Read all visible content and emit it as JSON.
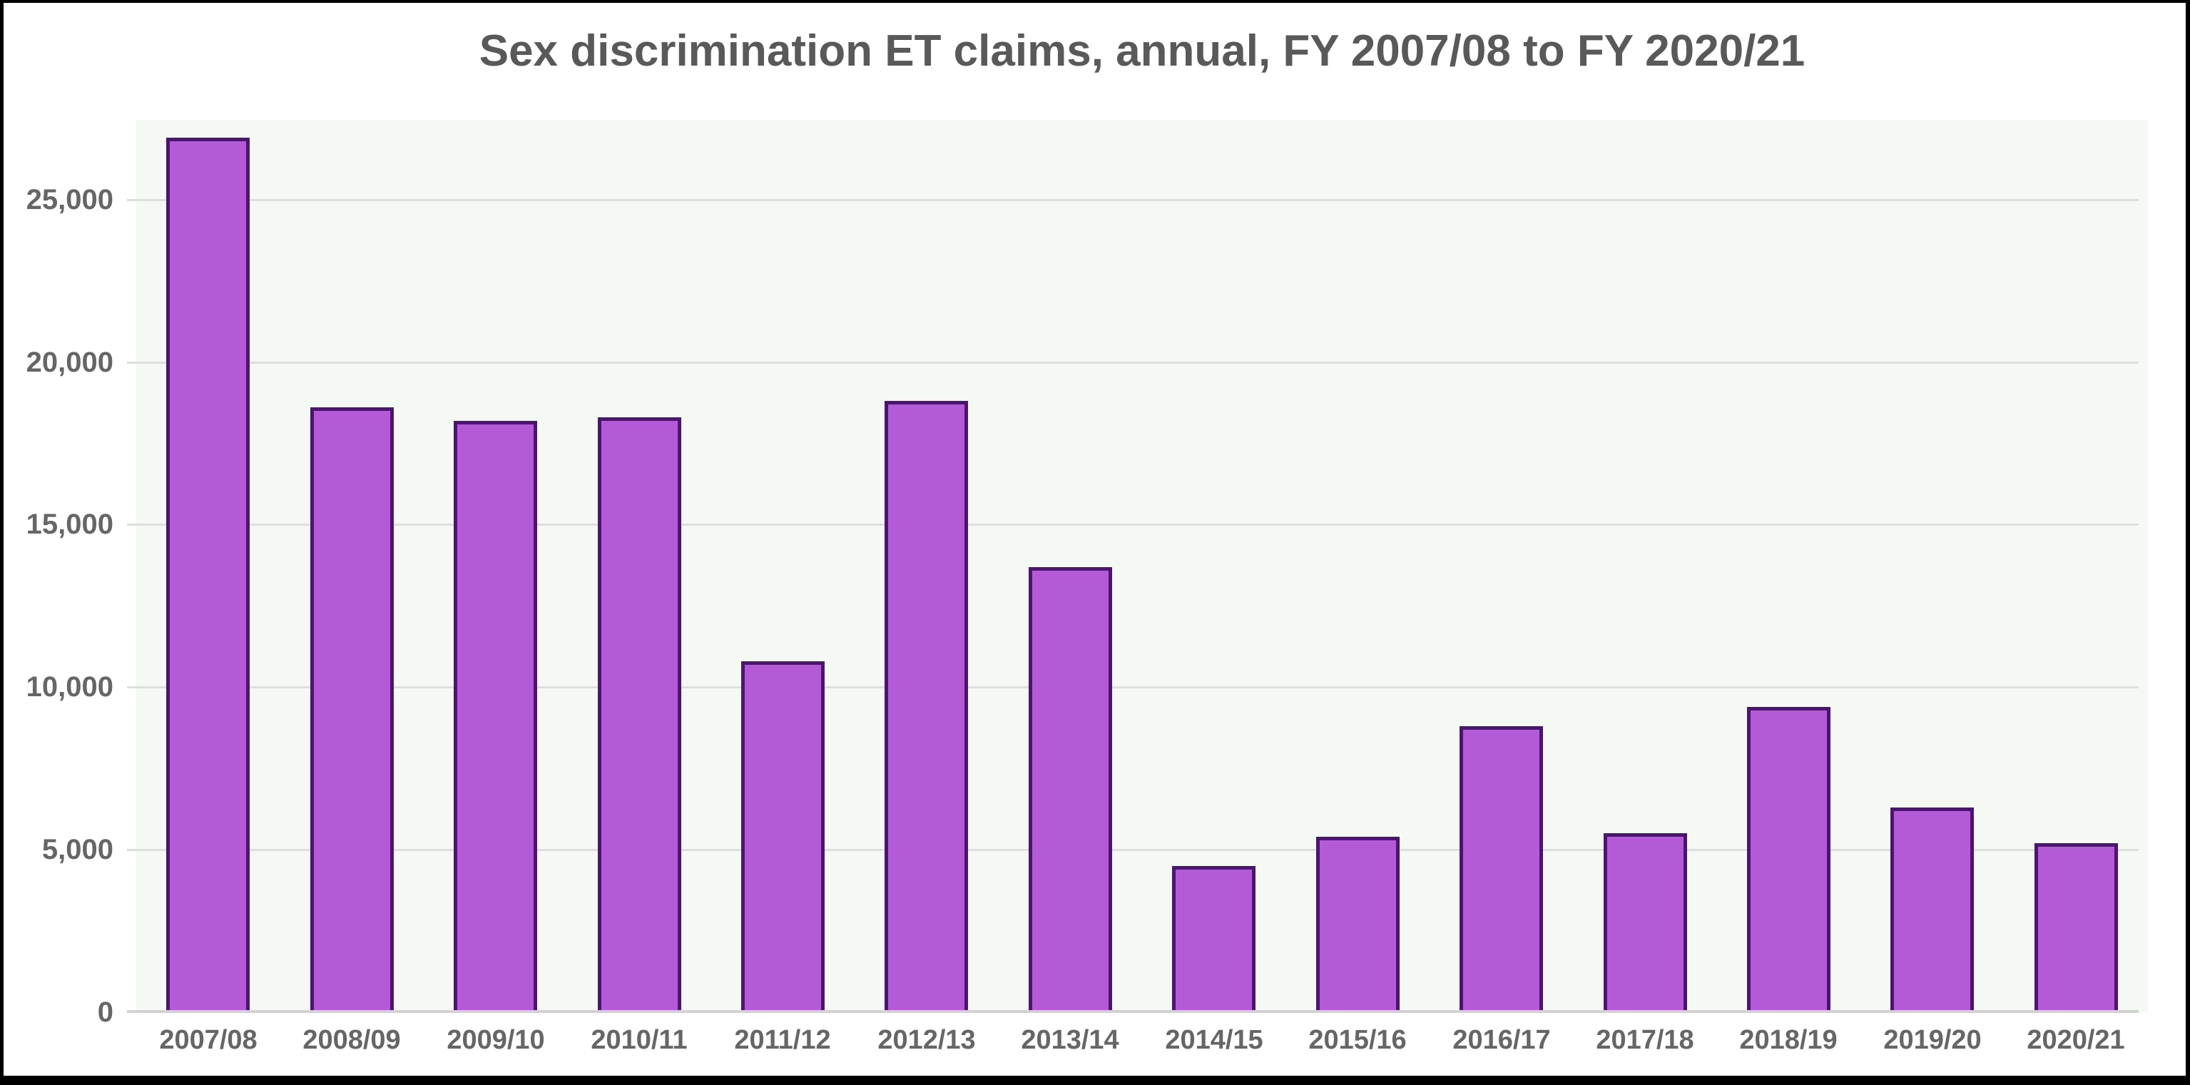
{
  "chart_data": {
    "type": "bar",
    "title": "Sex discrimination ET claims, annual, FY 2007/08 to FY 2020/21",
    "categories": [
      "2007/08",
      "2008/09",
      "2009/10",
      "2010/11",
      "2011/12",
      "2012/13",
      "2013/14",
      "2014/15",
      "2015/16",
      "2016/17",
      "2017/18",
      "2018/19",
      "2019/20",
      "2020/21"
    ],
    "values": [
      26900,
      18600,
      18200,
      18300,
      10800,
      18800,
      13700,
      4500,
      5400,
      8800,
      5500,
      9400,
      6300,
      5200
    ],
    "xlabel": "",
    "ylabel": "",
    "ylim": [
      0,
      27450
    ],
    "ytick_step": 5000,
    "ytick_labels": [
      "0",
      "5,000",
      "10,000",
      "15,000",
      "20,000",
      "25,000"
    ],
    "grid": "horizontal",
    "legend": "none",
    "colors": {
      "bar_fill": "#b55ad6",
      "bar_border": "#4c1472",
      "plot_background": "#f4f9f4",
      "gridline": "#dedede",
      "axis_line": "#d2d2d2",
      "tick_label": "#666666",
      "title": "#595959",
      "frame": "#000000",
      "card_background": "#ffffff"
    }
  }
}
